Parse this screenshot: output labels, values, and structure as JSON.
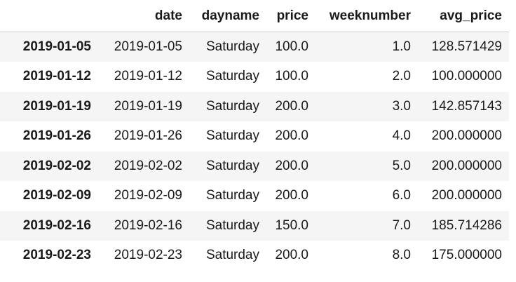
{
  "table": {
    "columns": [
      "",
      "date",
      "dayname",
      "price",
      "weeknumber",
      "avg_price"
    ],
    "rows": [
      {
        "index": "2019-01-05",
        "cells": [
          "2019-01-05",
          "Saturday",
          "100.0",
          "1.0",
          "128.571429"
        ]
      },
      {
        "index": "2019-01-12",
        "cells": [
          "2019-01-12",
          "Saturday",
          "100.0",
          "2.0",
          "100.000000"
        ]
      },
      {
        "index": "2019-01-19",
        "cells": [
          "2019-01-19",
          "Saturday",
          "200.0",
          "3.0",
          "142.857143"
        ]
      },
      {
        "index": "2019-01-26",
        "cells": [
          "2019-01-26",
          "Saturday",
          "200.0",
          "4.0",
          "200.000000"
        ]
      },
      {
        "index": "2019-02-02",
        "cells": [
          "2019-02-02",
          "Saturday",
          "200.0",
          "5.0",
          "200.000000"
        ]
      },
      {
        "index": "2019-02-09",
        "cells": [
          "2019-02-09",
          "Saturday",
          "200.0",
          "6.0",
          "200.000000"
        ]
      },
      {
        "index": "2019-02-16",
        "cells": [
          "2019-02-16",
          "Saturday",
          "150.0",
          "7.0",
          "185.714286"
        ]
      },
      {
        "index": "2019-02-23",
        "cells": [
          "2019-02-23",
          "Saturday",
          "200.0",
          "8.0",
          "175.000000"
        ]
      }
    ]
  },
  "colors": {
    "stripe": "#f5f5f5",
    "header_rule": "#c8c8c8",
    "text": "#1a1a1a"
  }
}
